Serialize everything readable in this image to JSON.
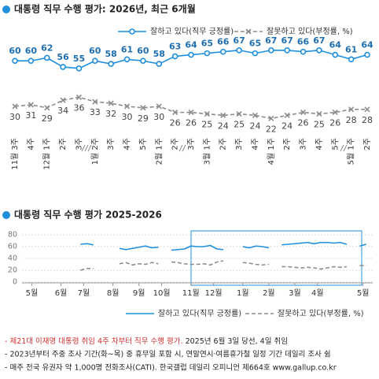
{
  "chart_data": [
    {
      "type": "line",
      "title": "대통령 직무 수행 평가: 2026년, 최근 6개월",
      "categories": [
        "11월 3주",
        "4주",
        "12월 1주",
        "2주",
        "3주",
        "1월 2주",
        "3주",
        "4주",
        "5주",
        "2월 1주",
        "2주",
        "3주",
        "3월 1주",
        "2주",
        "3주",
        "4주",
        "4월 1주",
        "2주",
        "3주",
        "4주",
        "5주",
        "5월 1주",
        "2주"
      ],
      "ylim": [
        18,
        70
      ],
      "series": [
        {
          "name": "잘하고 있다(직무 긍정률)",
          "color": "#1f8fdc",
          "values": [
            60,
            60,
            62,
            56,
            55,
            60,
            58,
            61,
            60,
            58,
            63,
            64,
            65,
            66,
            67,
            65,
            67,
            67,
            66,
            67,
            64,
            61,
            64
          ]
        },
        {
          "name": "잘못하고 있다(부정률, %)",
          "color": "#8c8c8c",
          "values": [
            30,
            31,
            29,
            34,
            36,
            33,
            32,
            30,
            29,
            30,
            26,
            26,
            25,
            24,
            25,
            24,
            22,
            24,
            26,
            25,
            26,
            28,
            28
          ]
        }
      ]
    },
    {
      "type": "line",
      "title": "대통령 직무 수행 평가 2025-2026",
      "x": [
        0,
        1,
        2,
        3,
        4,
        5,
        6,
        7,
        8,
        9,
        10,
        11,
        12,
        13,
        14,
        15,
        16,
        17,
        18,
        19,
        20,
        21,
        22,
        23,
        24,
        25,
        26,
        27,
        28,
        29,
        30,
        31,
        32,
        33,
        34,
        35,
        36,
        37,
        38,
        39,
        40,
        41,
        42,
        43,
        44,
        45,
        46,
        47,
        48,
        49,
        50,
        51,
        52
      ],
      "xlim": [
        -1,
        53
      ],
      "xticks": [
        {
          "value": 0.5,
          "label": "5월"
        },
        {
          "value": 5,
          "label": "6월"
        },
        {
          "value": 8.5,
          "label": "7월"
        },
        {
          "value": 13,
          "label": "8월"
        },
        {
          "value": 17,
          "label": "9월"
        },
        {
          "value": 20.5,
          "label": "10월"
        },
        {
          "value": 25,
          "label": "11월"
        },
        {
          "value": 28.5,
          "label": "12월"
        },
        {
          "value": 33,
          "label": "1월"
        },
        {
          "value": 37,
          "label": "2월"
        },
        {
          "value": 41,
          "label": "3월"
        },
        {
          "value": 44.5,
          "label": "4월"
        },
        {
          "value": 51.5,
          "label": "5월"
        }
      ],
      "ylim": [
        0,
        88
      ],
      "yticks": [
        0,
        20,
        40,
        60,
        80
      ],
      "grid": true,
      "series": [
        {
          "name": "잘하고 있다(직무 긍정률)",
          "color": "#1f8fdc",
          "values": [
            null,
            null,
            null,
            null,
            null,
            null,
            null,
            null,
            64,
            65,
            63,
            null,
            null,
            null,
            57,
            55,
            57,
            59,
            61,
            58,
            59,
            null,
            54,
            55,
            56,
            61,
            60,
            60,
            62,
            56,
            55,
            null,
            null,
            60,
            58,
            61,
            60,
            58,
            null,
            63,
            64,
            65,
            66,
            67,
            65,
            67,
            67,
            66,
            67,
            64,
            null,
            61,
            64
          ]
        },
        {
          "name": "잘못하고 있다(부정률, %)",
          "color": "#8c8c8c",
          "values": [
            null,
            null,
            null,
            null,
            null,
            null,
            null,
            null,
            20,
            23,
            23,
            null,
            null,
            null,
            31,
            33,
            29,
            31,
            30,
            33,
            31,
            null,
            34,
            33,
            31,
            30,
            30,
            31,
            29,
            34,
            36,
            null,
            null,
            33,
            32,
            30,
            29,
            30,
            null,
            26,
            26,
            25,
            24,
            25,
            24,
            22,
            24,
            26,
            25,
            26,
            null,
            28,
            28
          ]
        }
      ]
    }
  ],
  "notes": [
    {
      "highlight": "- 제21대 이재명 대통령 취임 4주 차부터 직무 수행 평가.",
      "text": " 2025년 6월 3일 당선, 4일 취임"
    },
    "- 2023년부터 주중 조사 기간(화~목) 중 휴무일 포함 시, 연말연시·여름휴가철 일정 기간 데일리 조사 쉼",
    "- 매주 전국 유권자 약 1,000명 전화조사(CATI). 한국갤럽 데일리 오피니언 제664호 www.gallup.co.kr"
  ]
}
